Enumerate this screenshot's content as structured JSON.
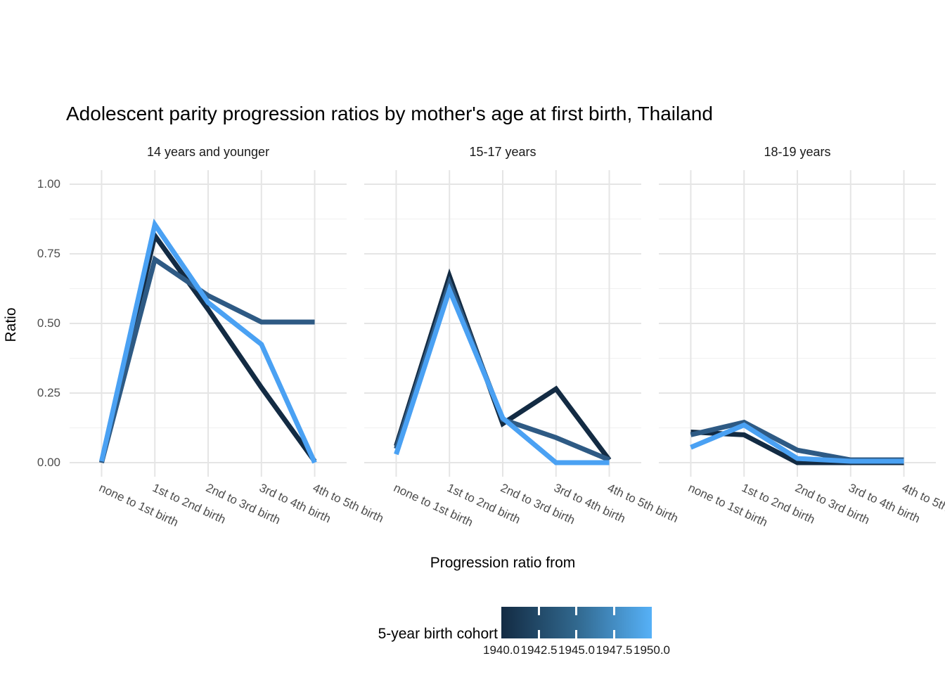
{
  "title": "Adolescent parity progression ratios by mother's age at first birth,  Thailand",
  "chart_data": {
    "type": "line",
    "title": "Adolescent parity progression ratios by mother's age at first birth,  Thailand",
    "xlabel": "Progression ratio from",
    "ylabel": "Ratio",
    "ylim": [
      0,
      1
    ],
    "y_ticks": [
      0.0,
      0.25,
      0.5,
      0.75,
      1.0
    ],
    "y_tick_labels": [
      "1.00",
      "0.75",
      "0.50",
      "0.25",
      "0.00"
    ],
    "grid": "on",
    "categories": [
      "none to 1st birth",
      "1st to 2nd birth",
      "2nd to 3rd birth",
      "3rd to 4th birth",
      "4th to 5th birth"
    ],
    "legend": {
      "title": "5-year birth cohort",
      "position": "bottom",
      "scale": "continuous-colorbar",
      "range": [
        1940,
        1950
      ],
      "tick_labels": [
        "1940.0",
        "1942.5",
        "1945.0",
        "1947.5",
        "1950.0"
      ],
      "gradient_low": "#132B43",
      "gradient_mid": "#31688E",
      "gradient_high": "#56B1F7"
    },
    "colors": {
      "cohort_1940": "#132B43",
      "cohort_1945": "#2E5A84",
      "cohort_1950": "#4AA1F3",
      "grid_major": "#e5e5e5",
      "grid_minor": "#f0f0f0"
    },
    "facets": [
      {
        "label": "14 years and younger",
        "series": [
          {
            "name": "1940",
            "color": "#132B43",
            "values": [
              0.0,
              0.815,
              0.55,
              0.27,
              0.005
            ]
          },
          {
            "name": "1945",
            "color": "#2E5A84",
            "values": [
              0.0,
              0.73,
              0.6,
              0.505,
              0.505
            ]
          },
          {
            "name": "1950",
            "color": "#4AA1F3",
            "values": [
              0.005,
              0.855,
              0.575,
              0.425,
              0.0
            ]
          }
        ]
      },
      {
        "label": "15-17 years",
        "series": [
          {
            "name": "1940",
            "color": "#132B43",
            "values": [
              0.06,
              0.67,
              0.14,
              0.265,
              0.01
            ]
          },
          {
            "name": "1945",
            "color": "#2E5A84",
            "values": [
              0.05,
              0.645,
              0.155,
              0.09,
              0.01
            ]
          },
          {
            "name": "1950",
            "color": "#4AA1F3",
            "values": [
              0.03,
              0.62,
              0.16,
              0.0,
              0.0
            ]
          }
        ]
      },
      {
        "label": "18-19 years",
        "series": [
          {
            "name": "1940",
            "color": "#132B43",
            "values": [
              0.11,
              0.1,
              0.0,
              0.0,
              0.0
            ]
          },
          {
            "name": "1945",
            "color": "#2E5A84",
            "values": [
              0.1,
              0.145,
              0.045,
              0.01,
              0.01
            ]
          },
          {
            "name": "1950",
            "color": "#4AA1F3",
            "values": [
              0.055,
              0.135,
              0.015,
              0.005,
              0.005
            ]
          }
        ]
      }
    ]
  }
}
